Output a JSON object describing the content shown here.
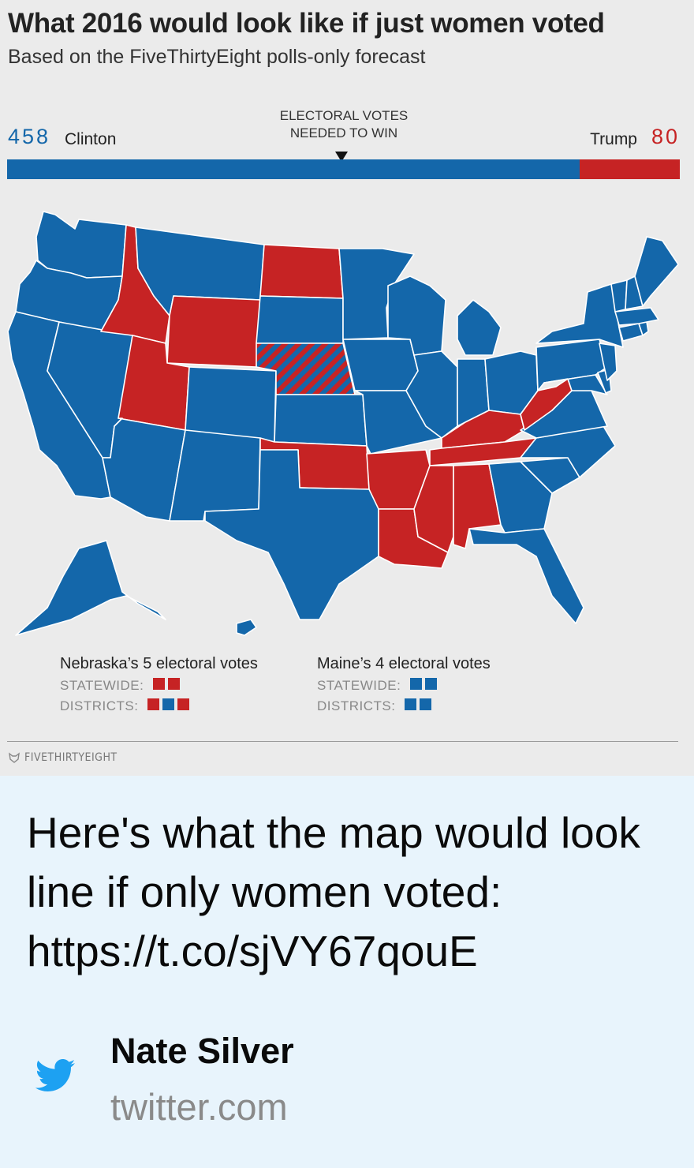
{
  "figure": {
    "title": "What 2016 would look like if just women voted",
    "subtitle": "Based on the FiveThirtyEight polls-only forecast",
    "ev_needed_label": "ELECTORAL VOTES\nNEEDED TO WIN",
    "colors": {
      "dem": "#1467aa",
      "rep": "#c62324",
      "background": "#ebebeb"
    },
    "clinton": {
      "name": "Clinton",
      "votes": "458"
    },
    "trump": {
      "name": "Trump",
      "votes": "80"
    },
    "ev_bar": {
      "total": 538,
      "clinton": 458,
      "trump": 80,
      "to_win": 270
    },
    "legend": {
      "nebraska": {
        "heading": "Nebraska’s 5 electoral votes",
        "statewide_label": "STATEWIDE:",
        "statewide": [
          "rep",
          "rep"
        ],
        "districts_label": "DISTRICTS:",
        "districts": [
          "rep",
          "dem",
          "rep"
        ]
      },
      "maine": {
        "heading": "Maine’s 4 electoral votes",
        "statewide_label": "STATEWIDE:",
        "statewide": [
          "dem",
          "dem"
        ],
        "districts_label": "DISTRICTS:",
        "districts": [
          "dem",
          "dem"
        ]
      }
    },
    "brand": "FIVETHIRTYEIGHT"
  },
  "map": {
    "states": [
      {
        "id": "WA",
        "winner": "dem"
      },
      {
        "id": "OR",
        "winner": "dem"
      },
      {
        "id": "CA",
        "winner": "dem"
      },
      {
        "id": "NV",
        "winner": "dem"
      },
      {
        "id": "ID",
        "winner": "rep"
      },
      {
        "id": "MT",
        "winner": "dem"
      },
      {
        "id": "WY",
        "winner": "rep"
      },
      {
        "id": "UT",
        "winner": "rep"
      },
      {
        "id": "AZ",
        "winner": "dem"
      },
      {
        "id": "CO",
        "winner": "dem"
      },
      {
        "id": "NM",
        "winner": "dem"
      },
      {
        "id": "ND",
        "winner": "rep"
      },
      {
        "id": "SD",
        "winner": "dem"
      },
      {
        "id": "NE",
        "winner": "split"
      },
      {
        "id": "KS",
        "winner": "dem"
      },
      {
        "id": "OK",
        "winner": "rep"
      },
      {
        "id": "TX",
        "winner": "dem"
      },
      {
        "id": "MN",
        "winner": "dem"
      },
      {
        "id": "IA",
        "winner": "dem"
      },
      {
        "id": "MO",
        "winner": "dem"
      },
      {
        "id": "AR",
        "winner": "rep"
      },
      {
        "id": "LA",
        "winner": "rep"
      },
      {
        "id": "WI",
        "winner": "dem"
      },
      {
        "id": "IL",
        "winner": "dem"
      },
      {
        "id": "MI",
        "winner": "dem"
      },
      {
        "id": "IN",
        "winner": "dem"
      },
      {
        "id": "OH",
        "winner": "dem"
      },
      {
        "id": "KY",
        "winner": "rep"
      },
      {
        "id": "TN",
        "winner": "rep"
      },
      {
        "id": "MS",
        "winner": "rep"
      },
      {
        "id": "AL",
        "winner": "rep"
      },
      {
        "id": "GA",
        "winner": "dem"
      },
      {
        "id": "FL",
        "winner": "dem"
      },
      {
        "id": "SC",
        "winner": "dem"
      },
      {
        "id": "NC",
        "winner": "dem"
      },
      {
        "id": "VA",
        "winner": "dem"
      },
      {
        "id": "WV",
        "winner": "rep"
      },
      {
        "id": "PA",
        "winner": "dem"
      },
      {
        "id": "NY",
        "winner": "dem"
      },
      {
        "id": "NJ",
        "winner": "dem"
      },
      {
        "id": "DE",
        "winner": "dem"
      },
      {
        "id": "MD",
        "winner": "dem"
      },
      {
        "id": "CT",
        "winner": "dem"
      },
      {
        "id": "RI",
        "winner": "dem"
      },
      {
        "id": "MA",
        "winner": "dem"
      },
      {
        "id": "VT",
        "winner": "dem"
      },
      {
        "id": "NH",
        "winner": "dem"
      },
      {
        "id": "ME",
        "winner": "dem"
      },
      {
        "id": "AK",
        "winner": "dem"
      },
      {
        "id": "HI",
        "winner": "dem"
      }
    ]
  },
  "tweet": {
    "text": "Here's what the map would look line if only women voted: https://t.co/sjVY67qouE",
    "author": "Nate Silver",
    "domain": "twitter.com",
    "icon": "twitter-bird-icon"
  }
}
